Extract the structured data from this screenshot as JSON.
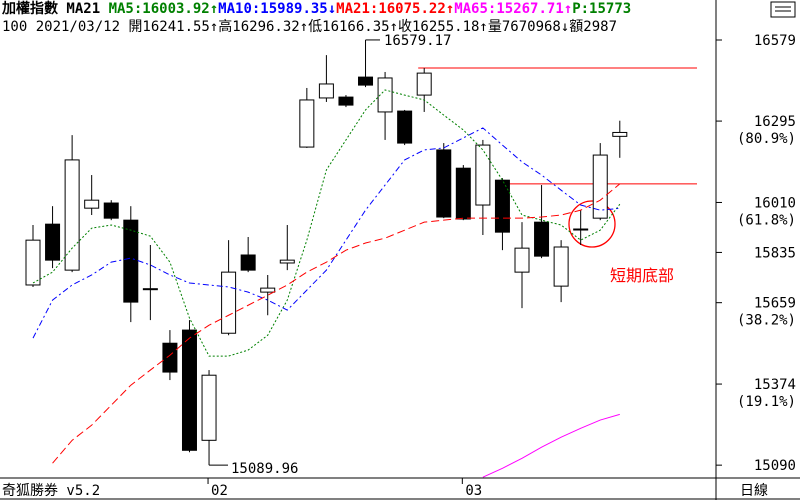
{
  "chart_data": {
    "type": "candlestick",
    "header": [
      [
        {
          "text": "加權指數 MA21 ",
          "color": "#000000"
        },
        {
          "text": "MA5:16003.92↑",
          "color": "#008000"
        },
        {
          "text": "MA10:15989.35↓",
          "color": "#0000ff"
        },
        {
          "text": "MA21:16075.22↑",
          "color": "#ff0000"
        },
        {
          "text": "MA65:15267.71↑",
          "color": "#ff00ff"
        },
        {
          "text": "P:15773",
          "color": "#008000"
        }
      ],
      [
        {
          "text": "100 2021/03/12 開16241.55↑高16296.32↑低16166.35↑收16255.18↑量7670968↓額2987",
          "color": "#000000"
        }
      ]
    ],
    "categories": [
      null,
      null,
      null,
      null,
      null,
      null,
      null,
      null,
      null,
      "02",
      null,
      null,
      null,
      null,
      null,
      null,
      null,
      null,
      null,
      null,
      null,
      null,
      "03",
      null,
      null,
      null,
      null,
      null,
      null,
      null,
      null
    ],
    "open": [
      15721,
      15934,
      15773,
      15990,
      16008,
      15948,
      15706,
      15517,
      15563,
      15177,
      15552,
      15826,
      15696,
      15798,
      16204,
      16376,
      16379,
      16449,
      16327,
      16330,
      16386,
      16194,
      16130,
      16001,
      16088,
      15766,
      15941,
      15717,
      15917,
      15955,
      16241.55
    ],
    "high": [
      15931,
      15997,
      16246,
      16106,
      16018,
      15997,
      15861,
      15563,
      15598,
      15423,
      15878,
      15889,
      15756,
      15931,
      16411,
      16526,
      16386,
      16579.17,
      16467,
      16334,
      16481,
      16218,
      16141,
      16229,
      16095,
      15941,
      16071,
      15878,
      15983,
      16218,
      16296.32
    ],
    "low": [
      15714,
      15780,
      15766,
      15966,
      15948,
      15591,
      15598,
      15388,
      15135,
      15089.96,
      15545,
      15766,
      15615,
      15773,
      16201,
      16362,
      16344,
      16414,
      16229,
      16211,
      16327,
      15955,
      15948,
      15896,
      15843,
      15640,
      15815,
      15661,
      15861,
      15948,
      16166.35
    ],
    "close": [
      15878,
      15808,
      16159,
      16018,
      15955,
      15661,
      15708,
      15416,
      15142,
      15405,
      15766,
      15773,
      15710,
      15808,
      16369,
      16425,
      16351,
      16421,
      16446,
      16218,
      16463,
      15959,
      15952,
      16211,
      15906,
      15850,
      15822,
      15854,
      15914,
      16176,
      16255.18
    ],
    "up_color": "#ffffff",
    "down_color": "#000000",
    "series": [
      {
        "name": "MA5",
        "color": "#008000",
        "values": [
          15728,
          15766,
          15850,
          15920,
          15931,
          15913,
          15892,
          15801,
          15605,
          15472,
          15472,
          15493,
          15545,
          15668,
          15878,
          16124,
          16229,
          16334,
          16404,
          16386,
          16369,
          16316,
          16264,
          16194,
          16088,
          15966,
          15948,
          15931,
          15878,
          15913,
          16003.92
        ]
      },
      {
        "name": "MA10",
        "color": "#0000ff",
        "values": [
          15535,
          15668,
          15721,
          15756,
          15801,
          15815,
          15791,
          15756,
          15728,
          15721,
          15714,
          15696,
          15668,
          15633,
          15703,
          15773,
          15878,
          15983,
          16071,
          16159,
          16194,
          16201,
          16236,
          16271,
          16211,
          16152,
          16106,
          16053,
          16001,
          15983,
          15989.35
        ]
      },
      {
        "name": "MA21",
        "color": "#ff0000",
        "values": [
          null,
          15097,
          15177,
          15230,
          15300,
          15370,
          15423,
          15475,
          15535,
          15580,
          15615,
          15650,
          15685,
          15721,
          15766,
          15801,
          15843,
          15868,
          15885,
          15913,
          15941,
          15948,
          15955,
          15955,
          15955,
          15955,
          15959,
          15966,
          15983,
          16018,
          16075.22
        ]
      },
      {
        "name": "MA65",
        "color": "#ff00ff",
        "values": [
          null,
          null,
          null,
          null,
          null,
          null,
          null,
          null,
          null,
          null,
          null,
          null,
          null,
          null,
          null,
          null,
          null,
          null,
          null,
          null,
          null,
          null,
          null,
          15048,
          15079,
          15114,
          15153,
          15188,
          15219,
          15248,
          15267.71
        ]
      }
    ],
    "hlines": [
      {
        "value": 16481,
        "start": 20
      },
      {
        "value": 16075,
        "start": 24
      }
    ],
    "hline_color": "#ff0000",
    "ylim": [
      15045,
      16642
    ],
    "yticks": [
      16579,
      16295,
      16010,
      15835,
      15659,
      15374,
      15090
    ],
    "ytick_notes": [
      null,
      "(80.9%)",
      "(61.8%)",
      null,
      "(38.2%)",
      "(19.1%)",
      null
    ],
    "annotation": {
      "text": "短期底部",
      "color": "#ff0000"
    },
    "footer_left": "奇狐勝券 v5.2",
    "period": "日線"
  }
}
